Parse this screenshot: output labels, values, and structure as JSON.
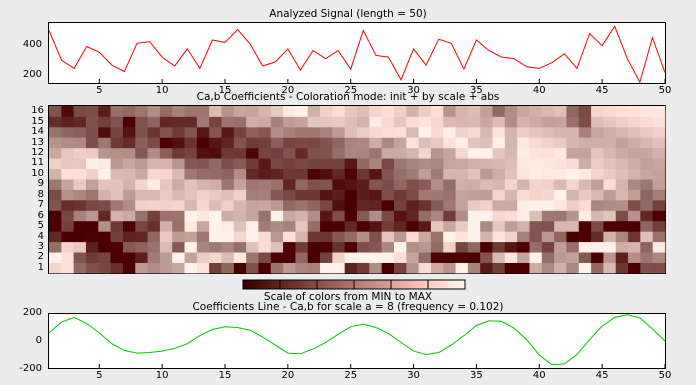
{
  "signal": {
    "title": "Analyzed Signal  (length = 50)",
    "yticks": [
      "400",
      "200"
    ],
    "xticks": [
      "5",
      "10",
      "15",
      "20",
      "25",
      "30",
      "35",
      "40",
      "45",
      "50"
    ],
    "ylim": [
      150,
      520
    ],
    "values": [
      475,
      290,
      240,
      375,
      340,
      260,
      220,
      395,
      405,
      310,
      255,
      360,
      240,
      415,
      400,
      480,
      390,
      255,
      280,
      360,
      230,
      350,
      300,
      350,
      235,
      475,
      320,
      310,
      170,
      360,
      260,
      420,
      395,
      235,
      415,
      350,
      310,
      300,
      250,
      240,
      275,
      330,
      240,
      455,
      380,
      500,
      300,
      155,
      430,
      215
    ],
    "color": "#ff0000"
  },
  "coefs": {
    "title": "Ca,b Coefficients - Coloration mode: init + by scale + abs",
    "yticks": [
      "16",
      "15",
      "14",
      "13",
      "12",
      "11",
      "10",
      "9",
      "8",
      "7",
      "6",
      "5",
      "4",
      "3",
      "2",
      "1"
    ],
    "xticks": [
      "5",
      "10",
      "15",
      "20",
      "25",
      "30",
      "35",
      "40",
      "45",
      "50"
    ],
    "rows": 16,
    "cols": 50
  },
  "colorbar": {
    "label": "Scale of colors from MIN to MAX"
  },
  "coefline": {
    "title": "Coefficients Line - Ca,b for scale a = 8  (frequency =   0.102)",
    "yticks": [
      "200",
      "0",
      "-200"
    ],
    "xticks": [
      "5",
      "10",
      "15",
      "20",
      "25",
      "30",
      "35",
      "40",
      "45",
      "50"
    ],
    "ylim": [
      -200,
      200
    ],
    "color": "#00c800",
    "values": [
      60,
      140,
      175,
      130,
      60,
      -20,
      -70,
      -90,
      -85,
      -75,
      -55,
      -20,
      40,
      85,
      105,
      100,
      80,
      30,
      -30,
      -90,
      -95,
      -60,
      -10,
      50,
      105,
      125,
      100,
      55,
      -10,
      -75,
      -100,
      -85,
      -30,
      40,
      115,
      150,
      145,
      95,
      10,
      -105,
      -175,
      -170,
      -100,
      10,
      110,
      175,
      195,
      170,
      90,
      0
    ]
  }
}
